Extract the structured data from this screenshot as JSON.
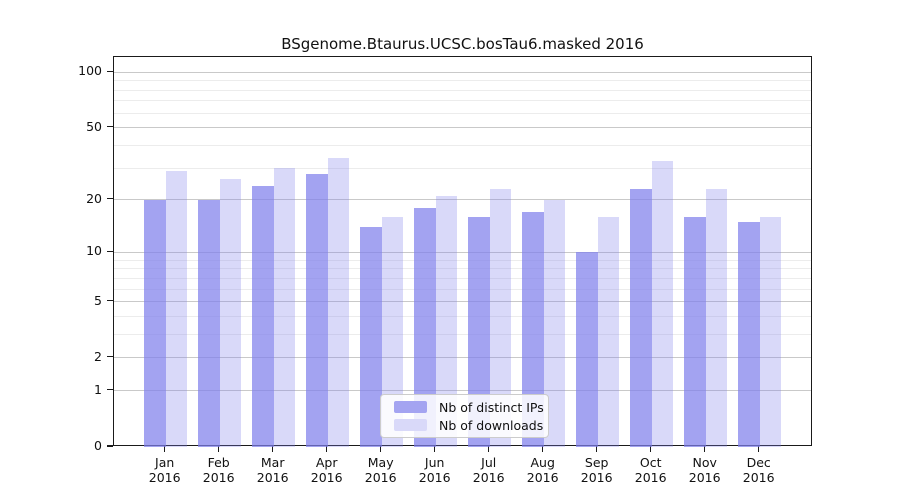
{
  "chart_data": {
    "type": "bar",
    "title": "BSgenome.Btaurus.UCSC.bosTau6.masked 2016",
    "categories": [
      "Jan",
      "Feb",
      "Mar",
      "Apr",
      "May",
      "Jun",
      "Jul",
      "Aug",
      "Sep",
      "Oct",
      "Nov",
      "Dec"
    ],
    "x_year_label": "2016",
    "series": [
      {
        "name": "Nb of distinct IPs",
        "values": [
          20,
          20,
          24,
          28,
          14,
          18,
          16,
          17,
          10,
          23,
          16,
          15
        ],
        "color": "rgba(128,128,235,0.72)",
        "legend_swatch": "#a4a4f1"
      },
      {
        "name": "Nb of downloads",
        "values": [
          29,
          26,
          30,
          34,
          16,
          21,
          23,
          20,
          16,
          33,
          23,
          16
        ],
        "color": "rgba(128,128,235,0.30)",
        "legend_swatch": "#d9d9f9"
      }
    ],
    "y_axis": {
      "scale": "log1p",
      "ticks": [
        0,
        1,
        2,
        5,
        10,
        20,
        50,
        100
      ],
      "minor_gridlines": [
        1,
        2,
        3,
        4,
        5,
        6,
        7,
        8,
        9,
        10,
        20,
        30,
        40,
        50,
        60,
        70,
        80,
        90,
        100
      ],
      "ylim": [
        0,
        121
      ]
    },
    "legend": {
      "position": "bottom-center"
    },
    "grid": "on"
  }
}
